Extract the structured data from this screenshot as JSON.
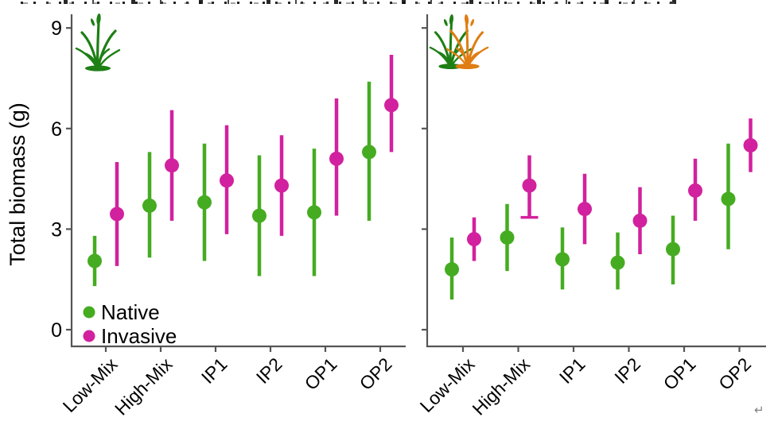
{
  "decoration": {
    "return_mark": "↵"
  },
  "colors": {
    "native": "#45ac21",
    "invasive": "#d2219e",
    "axis": "#555555",
    "text": "#000000",
    "icon_green": "#1d7f14",
    "icon_orange": "#e07d12",
    "return_mark": "#808080"
  },
  "chart_data": {
    "type": "scatter",
    "title": "",
    "ylabel": "Total biomass (g)",
    "xlabel": "",
    "ylim": [
      -0.5,
      9.4
    ],
    "yticks": [
      0,
      3,
      6,
      9
    ],
    "grid": false,
    "legend_position": "bottom-left inside first panel",
    "categories": [
      "Low-Mix",
      "High-Mix",
      "IP1",
      "IP2",
      "OP1",
      "OP2"
    ],
    "panels": [
      {
        "icon": "native-grass",
        "series": [
          {
            "name": "Native",
            "color_key": "native",
            "means": [
              2.05,
              3.7,
              3.8,
              3.4,
              3.5,
              5.3
            ],
            "ci_low": [
              1.3,
              2.15,
              2.05,
              1.6,
              1.6,
              3.25
            ],
            "ci_high": [
              2.8,
              5.3,
              5.55,
              5.2,
              5.4,
              7.4
            ]
          },
          {
            "name": "Invasive",
            "color_key": "invasive",
            "means": [
              3.45,
              4.9,
              4.45,
              4.3,
              5.1,
              6.7
            ],
            "ci_low": [
              1.9,
              3.25,
              2.85,
              2.8,
              3.4,
              5.3
            ],
            "ci_high": [
              5.0,
              6.55,
              6.1,
              5.8,
              6.9,
              8.2
            ]
          }
        ]
      },
      {
        "icon": "native-and-invasive-grass",
        "series": [
          {
            "name": "Native",
            "color_key": "native",
            "means": [
              1.8,
              2.75,
              2.1,
              2.0,
              2.4,
              3.9
            ],
            "ci_low": [
              0.9,
              1.75,
              1.2,
              1.2,
              1.35,
              2.4
            ],
            "ci_high": [
              2.75,
              3.75,
              3.05,
              2.9,
              3.4,
              5.55
            ]
          },
          {
            "name": "Invasive",
            "color_key": "invasive",
            "means": [
              2.7,
              4.3,
              3.6,
              3.25,
              4.15,
              5.5
            ],
            "ci_low": [
              2.05,
              3.35,
              2.55,
              2.25,
              3.25,
              4.7
            ],
            "ci_high": [
              3.35,
              5.2,
              4.65,
              4.25,
              5.1,
              6.3
            ],
            "caps_low": [
              false,
              true,
              false,
              false,
              false,
              false
            ]
          }
        ]
      }
    ],
    "legend": [
      {
        "label": "Native",
        "color_key": "native"
      },
      {
        "label": "Invasive",
        "color_key": "invasive"
      }
    ]
  }
}
